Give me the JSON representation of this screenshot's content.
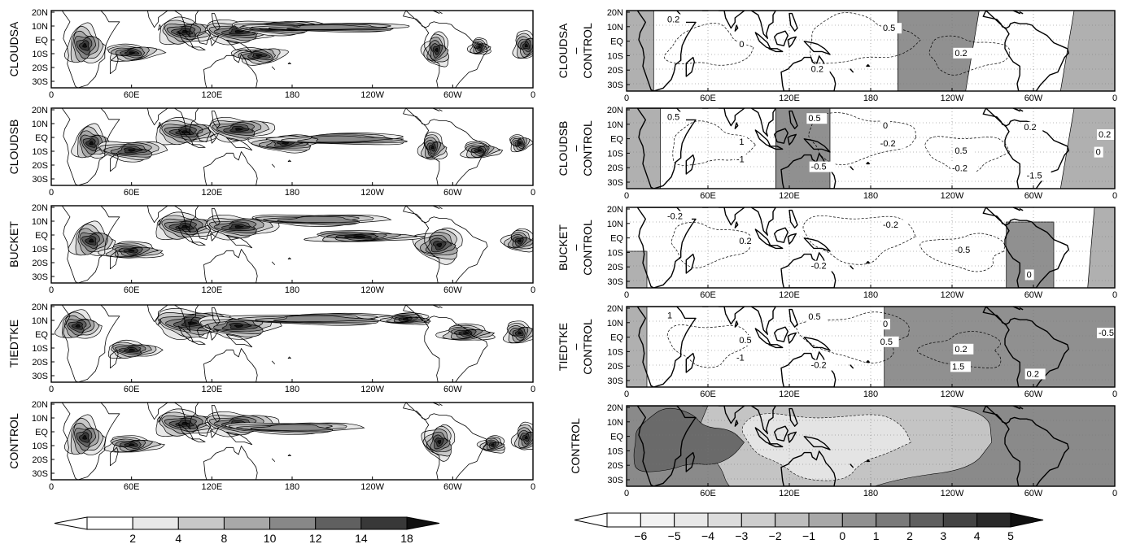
{
  "left_panels": [
    {
      "label": "CLOUDSA"
    },
    {
      "label": "CLOUDSB"
    },
    {
      "label": "BUCKET"
    },
    {
      "label": "TIEDTKE"
    },
    {
      "label": "CONTROL"
    }
  ],
  "right_panels": [
    {
      "label_lines": [
        "CLOUDSA",
        "–",
        "CONTROL"
      ],
      "contour_labels": [
        "0.2",
        "0",
        "0.2",
        "0.5",
        "0.2"
      ]
    },
    {
      "label_lines": [
        "CLOUDSB",
        "–",
        "CONTROL"
      ],
      "contour_labels": [
        "0.5",
        "1",
        "-0.5",
        "0",
        "0.5",
        "-1.5",
        "0.2",
        "-1",
        "0.5",
        "-0.2",
        "-0.2",
        "0.2",
        "0"
      ]
    },
    {
      "label_lines": [
        "BUCKET",
        "–",
        "CONTROL"
      ],
      "contour_labels": [
        "-0.2",
        "0.2",
        "-0.2",
        "-0.2",
        "-0.5",
        "0"
      ]
    },
    {
      "label_lines": [
        "TIEDTKE",
        "–",
        "CONTROL"
      ],
      "contour_labels": [
        "1",
        "0.5",
        "-0.2",
        "0",
        "0.2",
        "0.2",
        "-0.5",
        "-1",
        "0.5",
        "0.5",
        "1.5"
      ]
    },
    {
      "label_lines": [
        "CONTROL"
      ],
      "contour_labels": []
    }
  ],
  "lat_labels": [
    "20N",
    "10N",
    "EQ",
    "10S",
    "20S",
    "30S"
  ],
  "lon_labels": [
    "0",
    "60E",
    "120E",
    "180",
    "120W",
    "60W",
    "0"
  ],
  "colorbar_left": {
    "labels": [
      "2",
      "4",
      "8",
      "10",
      "12",
      "14",
      "18"
    ],
    "colors": [
      "#ffffff",
      "#ffffff",
      "#e8e8e8",
      "#c8c8c8",
      "#a8a8a8",
      "#888888",
      "#606060",
      "#383838",
      "#101010"
    ]
  },
  "colorbar_right": {
    "labels": [
      "−6",
      "−5",
      "−4",
      "−3",
      "−2",
      "−1",
      "0",
      "1",
      "2",
      "3",
      "4",
      "5"
    ],
    "colors": [
      "#ffffff",
      "#ffffff",
      "#f2f2f2",
      "#e8e8e8",
      "#dcdcdc",
      "#cdcdcd",
      "#bdbdbd",
      "#a8a8a8",
      "#909090",
      "#7a7a7a",
      "#5f5f5f",
      "#444444",
      "#2a2a2a",
      "#101010"
    ]
  }
}
